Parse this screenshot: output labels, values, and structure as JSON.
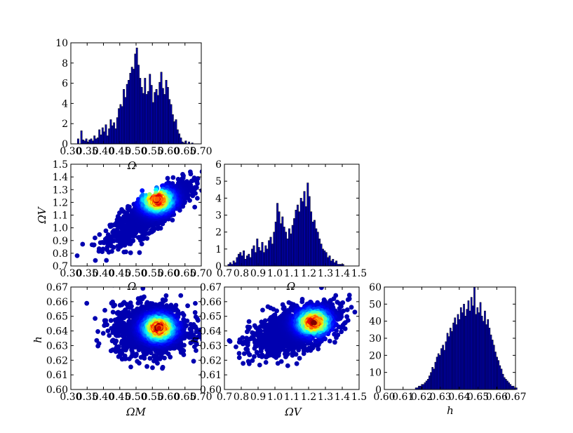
{
  "chart_data": [
    {
      "panel": "omega_m-hist",
      "type": "bar",
      "xlabel": "Ω",
      "ylabel": "",
      "xlim": [
        0.3,
        0.7
      ],
      "ylim": [
        0,
        10
      ],
      "xticks": [
        "0.30",
        "0.35",
        "0.40",
        "0.45",
        "0.50",
        "0.55",
        "0.60",
        "0.65",
        "0.70"
      ],
      "yticks": [
        "0",
        "2",
        "4",
        "6",
        "8",
        "10"
      ],
      "bins_start": 0.3,
      "bin_width": 0.005,
      "values": [
        0,
        0,
        0,
        0,
        0.5,
        0,
        1.3,
        0.4,
        0.3,
        0.5,
        0.2,
        0.4,
        0.5,
        0.3,
        0.8,
        0.5,
        0.6,
        1.4,
        0.9,
        1.6,
        1.2,
        1.9,
        0.8,
        1.5,
        2.4,
        1.8,
        2.1,
        1.5,
        2.6,
        3.5,
        3.9,
        3.7,
        5.4,
        4.6,
        5.9,
        6.3,
        7.0,
        7.6,
        7.4,
        8.9,
        9.5,
        7.8,
        6.5,
        5.6,
        5.0,
        6.5,
        4.9,
        5.2,
        6.9,
        5.8,
        4.1,
        5.1,
        5.4,
        4.8,
        6.1,
        7.1,
        5.5,
        4.9,
        6.3,
        5.6,
        4.4,
        3.9,
        2.9,
        2.2,
        2.4,
        1.4,
        1.0,
        0.6,
        0.2,
        0.1,
        0.3,
        0,
        0.2,
        0,
        0.1,
        0,
        0,
        0,
        0,
        0
      ]
    },
    {
      "panel": "omega_v-vs-omega_m",
      "type": "scatter",
      "xlabel": "Ω",
      "ylabel": "ΩV",
      "xlim": [
        0.3,
        0.7
      ],
      "ylim": [
        0.7,
        1.5
      ],
      "xticks": [
        "0.30",
        "0.35",
        "0.40",
        "0.45",
        "0.50",
        "0.55",
        "0.60",
        "0.65",
        "0.70"
      ],
      "yticks": [
        "0.7",
        "0.8",
        "0.9",
        "1.0",
        "1.1",
        "1.2",
        "1.3",
        "1.4",
        "1.5"
      ],
      "colormap": "jet",
      "density_peak": {
        "x": 0.565,
        "y": 1.22
      }
    },
    {
      "panel": "omega_v-hist",
      "type": "bar",
      "xlabel": "Ω",
      "ylabel": "",
      "xlim": [
        0.7,
        1.5
      ],
      "ylim": [
        0,
        6
      ],
      "xticks": [
        "0.7",
        "0.8",
        "0.9",
        "1.0",
        "1.1",
        "1.2",
        "1.3",
        "1.4",
        "1.5"
      ],
      "yticks": [
        "0",
        "1",
        "2",
        "3",
        "4",
        "5",
        "6"
      ],
      "bins_start": 0.72,
      "bin_width": 0.01,
      "values": [
        0.1,
        0.2,
        0.1,
        0.3,
        0.2,
        0.5,
        0.7,
        0.8,
        0.6,
        0.9,
        0.4,
        0.6,
        0.7,
        0.5,
        1.0,
        1.2,
        0.8,
        1.6,
        1.1,
        0.9,
        1.4,
        0.8,
        1.2,
        1.0,
        1.5,
        1.7,
        1.3,
        2.0,
        2.6,
        3.7,
        3.2,
        2.5,
        2.9,
        2.3,
        2.0,
        1.6,
        2.2,
        1.9,
        2.4,
        2.8,
        3.3,
        3.6,
        3.2,
        4.0,
        3.8,
        4.4,
        3.5,
        4.9,
        4.1,
        3.2,
        2.6,
        2.7,
        2.2,
        2.0,
        1.6,
        1.3,
        1.0,
        0.9,
        0.8,
        0.5,
        0.6,
        0.3,
        0.4,
        0.2,
        0.3,
        0.1,
        0.1,
        0.1,
        0.1,
        0
      ]
    },
    {
      "panel": "h-vs-omega_m",
      "type": "scatter",
      "xlabel": "ΩM",
      "ylabel": "h",
      "xlim": [
        0.3,
        0.7
      ],
      "ylim": [
        0.6,
        0.67
      ],
      "xticks": [
        "0.30",
        "0.35",
        "0.40",
        "0.45",
        "0.50",
        "0.55",
        "0.60",
        "0.65",
        "0.70"
      ],
      "yticks": [
        "0.60",
        "0.61",
        "0.62",
        "0.63",
        "0.64",
        "0.65",
        "0.66",
        "0.67"
      ],
      "colormap": "jet",
      "density_peak": {
        "x": 0.57,
        "y": 0.642
      }
    },
    {
      "panel": "h-vs-omega_v",
      "type": "scatter",
      "xlabel": "ΩV",
      "ylabel": "h",
      "xlim": [
        0.7,
        1.5
      ],
      "ylim": [
        0.6,
        0.67
      ],
      "xticks": [
        "0.7",
        "0.8",
        "0.9",
        "1.0",
        "1.1",
        "1.2",
        "1.3",
        "1.4",
        "1.5"
      ],
      "yticks": [
        "0.60",
        "0.61",
        "0.62",
        "0.63",
        "0.64",
        "0.65",
        "0.66",
        "0.67"
      ],
      "colormap": "jet",
      "density_peak": {
        "x": 1.23,
        "y": 0.646
      }
    },
    {
      "panel": "h-hist",
      "type": "bar",
      "xlabel": "h",
      "ylabel": "",
      "xlim": [
        0.6,
        0.67
      ],
      "ylim": [
        0,
        60
      ],
      "xticks": [
        "0.60",
        "0.61",
        "0.62",
        "0.63",
        "0.64",
        "0.65",
        "0.66",
        "0.67"
      ],
      "yticks": [
        "0",
        "10",
        "20",
        "30",
        "40",
        "50",
        "60"
      ],
      "bins_start": 0.6165,
      "bin_width": 0.0008,
      "values": [
        1,
        1,
        2,
        2,
        3,
        3,
        4,
        5,
        6,
        8,
        10,
        13,
        12,
        16,
        19,
        21,
        20,
        24,
        26,
        23,
        28,
        33,
        31,
        36,
        34,
        39,
        42,
        38,
        44,
        41,
        48,
        45,
        50,
        43,
        47,
        52,
        46,
        54,
        49,
        60,
        44,
        48,
        45,
        51,
        43,
        40,
        46,
        38,
        41,
        36,
        32,
        29,
        26,
        22,
        19,
        17,
        14,
        12,
        9,
        7,
        6,
        5,
        4,
        3,
        2,
        2,
        1,
        1
      ]
    }
  ]
}
